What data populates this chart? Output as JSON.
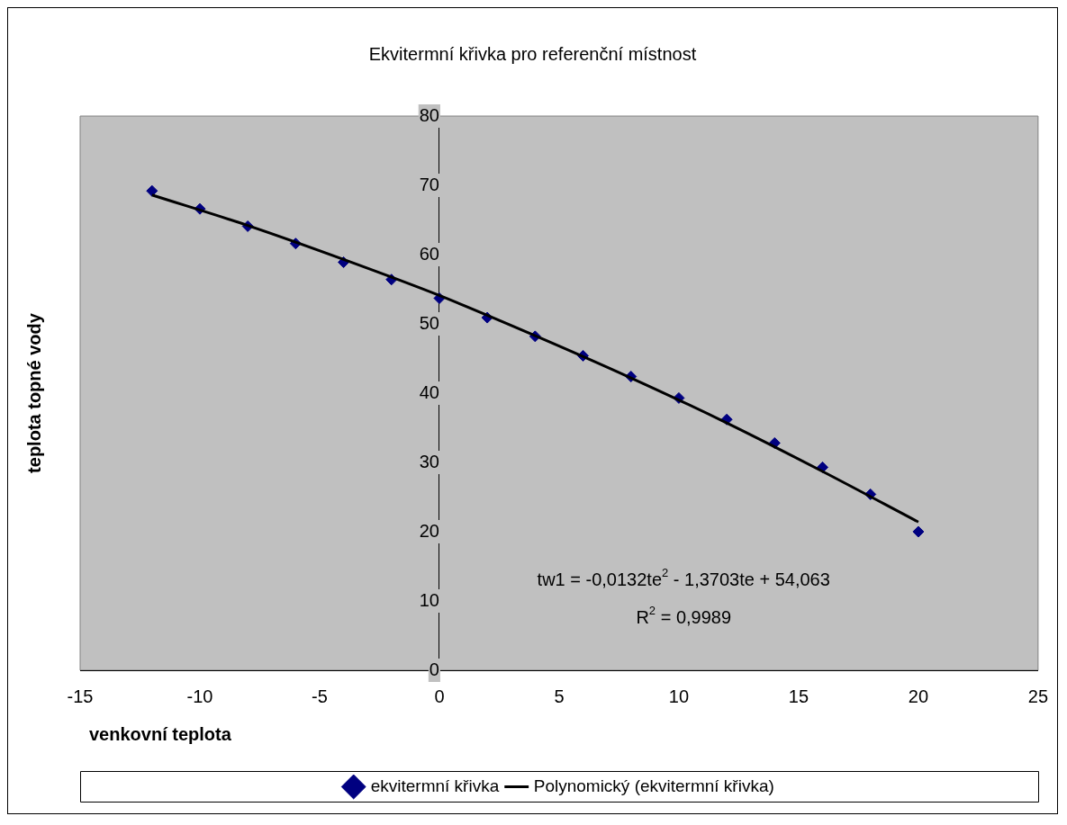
{
  "chart_data": {
    "type": "scatter",
    "title": "Ekvitermní křivka pro referenční místnost",
    "xlabel": "venkovní teplota",
    "ylabel": "teplota topné vody",
    "xlim": [
      -15,
      25
    ],
    "xticks": [
      -15,
      -10,
      -5,
      0,
      5,
      10,
      15,
      20,
      25
    ],
    "ylim": [
      0,
      80
    ],
    "yticks": [
      0,
      10,
      20,
      30,
      40,
      50,
      60,
      70,
      80
    ],
    "grid": false,
    "legend": "bottom",
    "series": [
      {
        "name": "ekvitermní křivka",
        "type": "scatter",
        "marker": "diamond",
        "color": "#000080",
        "x": [
          -12,
          -10,
          -8,
          -6,
          -4,
          -2,
          0,
          2,
          4,
          6,
          8,
          10,
          12,
          14,
          16,
          18,
          20
        ],
        "values": [
          69.2,
          66.6,
          64.1,
          61.6,
          58.9,
          56.4,
          53.7,
          50.9,
          48.2,
          45.4,
          42.4,
          39.3,
          36.2,
          32.8,
          29.3,
          25.4,
          20.0
        ]
      },
      {
        "name": "Polynomický (ekvitermní křivka)",
        "type": "line",
        "marker": "none",
        "color": "#000000",
        "x": [
          -12,
          -8,
          -4,
          0,
          4,
          8,
          12,
          16,
          20
        ],
        "values": [
          68.6,
          64.2,
          59.3,
          54.1,
          48.3,
          42.2,
          35.7,
          28.7,
          21.4
        ]
      }
    ],
    "annotations": [
      "tw1 = -0,0132te$^{2}$ - 1,3703te + 54,063",
      "R$^{2}$ = 0,9989"
    ]
  }
}
